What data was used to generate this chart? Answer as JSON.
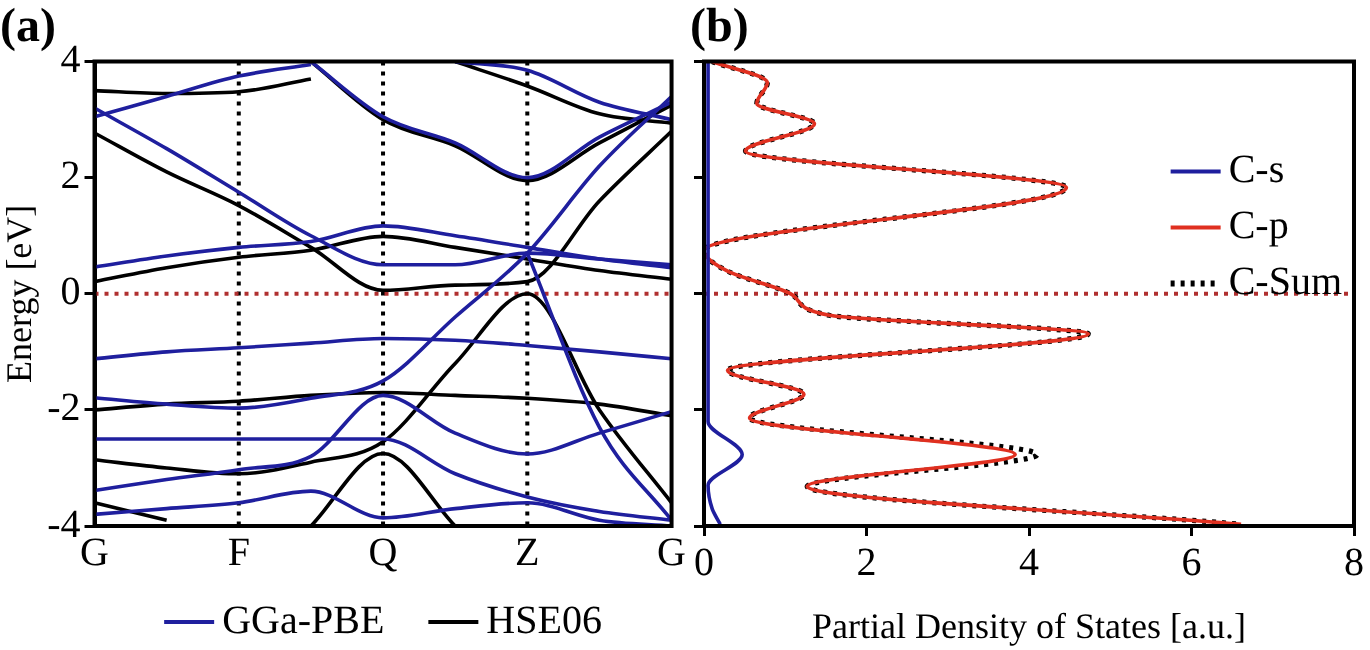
{
  "chart_data": [
    {
      "type": "line",
      "title": "(a)",
      "ylabel": "Energy [eV]",
      "categories": [
        "G",
        null,
        "F",
        null,
        "Q",
        null,
        "Z",
        null,
        "G"
      ],
      "ylim": [
        -4,
        4
      ],
      "yticks": [
        -4,
        -2,
        0,
        2,
        4
      ],
      "grid": false,
      "legend": "bottom",
      "line_style": "solid",
      "ref_lines": [
        {
          "axis": "x",
          "value": "F",
          "color": "#000000",
          "line_style": "dotted"
        },
        {
          "axis": "x",
          "value": "Q",
          "color": "#000000",
          "line_style": "dotted"
        },
        {
          "axis": "x",
          "value": "Z",
          "color": "#000000",
          "line_style": "dotted"
        },
        {
          "axis": "y",
          "value": 0,
          "color": "#b03030",
          "line_style": "dotted"
        }
      ],
      "series": [
        {
          "name": "GGa-PBE",
          "color": "#1f1f9e",
          "values": [
            0.46,
            0.65,
            0.8,
            0.9,
            1.17,
            1.0,
            0.8,
            0.6,
            0.45
          ]
        },
        {
          "color": "#1f1f9e",
          "values": [
            3.2,
            2.5,
            1.75,
            1.0,
            0.5,
            0.5,
            0.7,
            0.6,
            0.5
          ]
        },
        {
          "color": "#1f1f9e",
          "values": [
            -1.79,
            -1.9,
            -1.97,
            -1.8,
            -1.5,
            -0.4,
            0.7,
            2.2,
            3.4
          ]
        },
        {
          "color": "#1f1f9e",
          "values": [
            -1.12,
            -1.0,
            -0.93,
            -0.85,
            -0.77,
            -0.8,
            -0.89,
            -1.0,
            -1.12
          ]
        },
        {
          "color": "#1f1f9e",
          "values": [
            -2.5,
            -2.5,
            -2.5,
            -2.5,
            -2.5,
            -3.1,
            -3.5,
            -3.75,
            -3.9
          ]
        },
        {
          "color": "#1f1f9e",
          "values": [
            -3.39,
            -3.2,
            -3.03,
            -2.8,
            -1.75,
            -2.4,
            -2.76,
            -2.4,
            -2.03
          ]
        },
        {
          "color": "#1f1f9e",
          "values": [
            -3.8,
            -3.7,
            -3.6,
            -3.4,
            -3.86,
            -3.7,
            -3.6,
            -3.9,
            -4.0
          ]
        },
        {
          "color": "#1f1f9e",
          "values": [
            3.05,
            3.4,
            3.75,
            3.95,
            null,
            null,
            null,
            null,
            null
          ]
        },
        {
          "color": "#1f1f9e",
          "values": [
            null,
            null,
            null,
            4.0,
            3.05,
            2.6,
            2.0,
            2.7,
            3.3
          ]
        },
        {
          "color": "#1f1f9e",
          "values": [
            null,
            null,
            null,
            null,
            null,
            4.0,
            3.85,
            3.3,
            3.0
          ]
        },
        {
          "color": "#1f1f9e",
          "values": [
            null,
            null,
            null,
            null,
            null,
            null,
            0.7,
            -2.3,
            -3.9
          ]
        },
        {
          "name": "HSE06",
          "color": "#000000",
          "values": [
            0.21,
            0.45,
            0.63,
            0.75,
            0.99,
            0.8,
            0.6,
            0.4,
            0.25
          ]
        },
        {
          "color": "#000000",
          "values": [
            2.77,
            2.1,
            1.52,
            0.8,
            0.06,
            0.15,
            0.21,
            1.6,
            2.8
          ]
        },
        {
          "color": "#000000",
          "values": [
            3.5,
            3.45,
            3.48,
            3.7,
            null,
            null,
            null,
            null,
            null
          ]
        },
        {
          "color": "#000000",
          "values": [
            null,
            null,
            null,
            4.0,
            3.0,
            2.55,
            1.95,
            2.6,
            3.25
          ]
        },
        {
          "color": "#000000",
          "values": [
            null,
            null,
            null,
            null,
            null,
            4.0,
            3.58,
            3.1,
            2.94
          ]
        },
        {
          "color": "#000000",
          "values": [
            -2.0,
            -1.9,
            -1.85,
            -1.75,
            -1.7,
            -1.75,
            -1.8,
            -1.9,
            -2.1
          ]
        },
        {
          "color": "#000000",
          "values": [
            -2.86,
            -3.0,
            -3.1,
            -2.9,
            -2.55,
            -1.2,
            0.0,
            -2.0,
            -3.6
          ]
        },
        {
          "color": "#000000",
          "values": [
            -3.6,
            -3.9,
            null,
            null,
            null,
            null,
            null,
            null,
            null
          ]
        },
        {
          "color": "#000000",
          "values": [
            null,
            null,
            null,
            -4.0,
            -2.75,
            -4.0,
            null,
            null,
            null
          ]
        }
      ]
    },
    {
      "type": "line",
      "title": "(b)",
      "xlabel": "Partial Density of States [a.u.]",
      "xlim": [
        0,
        8
      ],
      "xticks": [
        0,
        2,
        4,
        6,
        8
      ],
      "ylim": [
        -4,
        4
      ],
      "yticks": [
        -4,
        -2,
        0,
        2,
        4
      ],
      "tick_labels": "x",
      "grid": false,
      "legend": "top right",
      "ref_lines": [
        {
          "axis": "y",
          "value": 0,
          "color": "#b03030",
          "line_style": "dotted"
        }
      ],
      "series": [
        {
          "name": "C-s",
          "color": "#1f1f9e",
          "line_style": "solid",
          "x": [
            0.05,
            0.05,
            0.47,
            0.05,
            0.1,
            0.2
          ],
          "values": [
            4.0,
            -2.2,
            -2.77,
            -3.3,
            -3.7,
            -3.97
          ]
        },
        {
          "name": "C-p",
          "color": "#e03020",
          "line_style": "solid",
          "x": [
            0.1,
            0.78,
            0.65,
            1.36,
            0.51,
            4.46,
            0,
            0.29,
            1.09,
            1.54,
            4.73,
            0.29,
            1.23,
            0.56,
            3.83,
            1.27,
            6.61
          ],
          "values": [
            4.0,
            3.64,
            3.28,
            2.93,
            2.46,
            1.83,
            0.74,
            0.39,
            -0.02,
            -0.37,
            -0.69,
            -1.32,
            -1.73,
            -2.14,
            -2.77,
            -3.32,
            -3.97
          ]
        },
        {
          "name": "C-Sum",
          "color": "#000000",
          "line_style": "dotted",
          "x": [
            0.1,
            0.78,
            0.65,
            1.36,
            0.51,
            4.46,
            0,
            0.29,
            1.09,
            1.54,
            4.73,
            0.29,
            1.23,
            0.56,
            4.1,
            1.27,
            6.61
          ],
          "values": [
            4.0,
            3.64,
            3.28,
            2.93,
            2.46,
            1.83,
            0.74,
            0.39,
            -0.02,
            -0.37,
            -0.69,
            -1.32,
            -1.73,
            -2.14,
            -2.77,
            -3.32,
            -3.97
          ]
        }
      ]
    }
  ]
}
